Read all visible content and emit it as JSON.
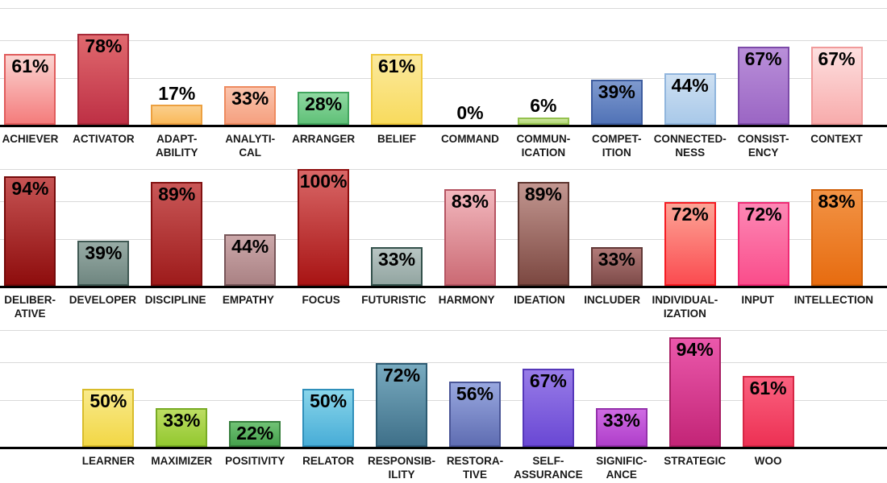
{
  "chart_data": {
    "type": "bar",
    "unit": "%",
    "ylim": [
      0,
      100
    ],
    "grid": "horizontal",
    "style": {
      "background": "#FFFFFF",
      "grid_color": "#D9D9D9",
      "axis_color": "#000000",
      "value_label_color": "#000000",
      "category_label_color": "#1A1A1A"
    },
    "rows": [
      {
        "offset": 0,
        "bars": [
          {
            "name": "ACHIEVER",
            "lines": [
              "ACHIEVER"
            ],
            "value": 61,
            "top": "#FBD4D1",
            "bottom": "#F47C7C",
            "border": "#E05C5C"
          },
          {
            "name": "ACTIVATOR",
            "lines": [
              "ACTIVATOR"
            ],
            "value": 78,
            "top": "#E0696E",
            "bottom": "#BE3045",
            "border": "#A62938"
          },
          {
            "name": "ADAPTABILITY",
            "lines": [
              "ADAPT-",
              "ABILITY"
            ],
            "value": 17,
            "top": "#FBCF8C",
            "bottom": "#F9BA5B",
            "border": "#ECA040"
          },
          {
            "name": "ANALYTICAL",
            "lines": [
              "ANALYTI-",
              "CAL"
            ],
            "value": 33,
            "top": "#FAC4AD",
            "bottom": "#F5A07F",
            "border": "#EE8B60"
          },
          {
            "name": "ARRANGER",
            "lines": [
              "ARRANGER"
            ],
            "value": 28,
            "top": "#8FD9A1",
            "bottom": "#60C078",
            "border": "#42A55E"
          },
          {
            "name": "BELIEF",
            "lines": [
              "BELIEF"
            ],
            "value": 61,
            "top": "#FBE99D",
            "bottom": "#F8DB5E",
            "border": "#EFC93E"
          },
          {
            "name": "COMMAND",
            "lines": [
              "COMMAND"
            ],
            "value": 0,
            "top": "#D9D9D9",
            "bottom": "#D9D9D9",
            "border": "#D9D9D9"
          },
          {
            "name": "COMMUNICATION",
            "lines": [
              "COMMUN-",
              "ICATION"
            ],
            "value": 6,
            "top": "#CCE49D",
            "bottom": "#B5D879",
            "border": "#95C24F"
          },
          {
            "name": "COMPETITION",
            "lines": [
              "COMPET-",
              "ITION"
            ],
            "value": 39,
            "top": "#7E99CE",
            "bottom": "#5173B7",
            "border": "#3D5C9E"
          },
          {
            "name": "CONNECTEDNESS",
            "lines": [
              "CONNECTED-",
              "NESS"
            ],
            "value": 44,
            "top": "#CEE0F2",
            "bottom": "#A9C9E9",
            "border": "#90B5DD"
          },
          {
            "name": "CONSISTENCY",
            "lines": [
              "CONSIST-",
              "ENCY"
            ],
            "value": 67,
            "top": "#B98FD9",
            "bottom": "#9B66C4",
            "border": "#7C4AA8"
          },
          {
            "name": "CONTEXT",
            "lines": [
              "CONTEXT"
            ],
            "value": 67,
            "top": "#FDDFDF",
            "bottom": "#F8ACAC",
            "border": "#F09A9A"
          }
        ]
      },
      {
        "offset": 0,
        "bars": [
          {
            "name": "DELIBERATIVE",
            "lines": [
              "DELIBER-",
              "ATIVE"
            ],
            "value": 94,
            "top": "#C65353",
            "bottom": "#8E0D0D",
            "border": "#740A0A"
          },
          {
            "name": "DEVELOPER",
            "lines": [
              "DEVELOPER"
            ],
            "value": 39,
            "top": "#97ABA5",
            "bottom": "#6F8680",
            "border": "#3E5852"
          },
          {
            "name": "DISCIPLINE",
            "lines": [
              "DISCIPLINE"
            ],
            "value": 89,
            "top": "#C95757",
            "bottom": "#9E1B1B",
            "border": "#811111"
          },
          {
            "name": "EMPATHY",
            "lines": [
              "EMPATHY"
            ],
            "value": 44,
            "top": "#CBA7A9",
            "bottom": "#AA8284",
            "border": "#775659"
          },
          {
            "name": "FOCUS",
            "lines": [
              "FOCUS"
            ],
            "value": 100,
            "top": "#D96767",
            "bottom": "#A81414",
            "border": "#8E0E0E"
          },
          {
            "name": "FUTURISTIC",
            "lines": [
              "FUTURISTIC"
            ],
            "value": 33,
            "top": "#B8C5C3",
            "bottom": "#92A5A1",
            "border": "#33514B"
          },
          {
            "name": "HARMONY",
            "lines": [
              "HARMONY"
            ],
            "value": 83,
            "top": "#F2B7BD",
            "bottom": "#CB6A74",
            "border": "#B55462"
          },
          {
            "name": "IDEATION",
            "lines": [
              "IDEATION"
            ],
            "value": 89,
            "top": "#C29690",
            "bottom": "#7C4841",
            "border": "#5C342E"
          },
          {
            "name": "INCLUDER",
            "lines": [
              "INCLUDER"
            ],
            "value": 33,
            "top": "#B17A78",
            "bottom": "#7E4B49",
            "border": "#613836"
          },
          {
            "name": "INDIVIDUALIZATION",
            "lines": [
              "INDIVIDUAL-",
              "IZATION"
            ],
            "value": 72,
            "top": "#FCA496",
            "bottom": "#FB4B50",
            "border": "#F51B22"
          },
          {
            "name": "INPUT",
            "lines": [
              "INPUT"
            ],
            "value": 72,
            "top": "#FC88B5",
            "bottom": "#FA4D8B",
            "border": "#EF2A74"
          },
          {
            "name": "INTELLECTION",
            "lines": [
              "INTELLECTION"
            ],
            "value": 83,
            "top": "#F29345",
            "bottom": "#E76C10",
            "border": "#CF5F09"
          }
        ]
      },
      {
        "offset": 1,
        "bars": [
          {
            "name": "LEARNER",
            "lines": [
              "LEARNER"
            ],
            "value": 50,
            "top": "#F9EA8B",
            "bottom": "#F2D746",
            "border": "#D8BC2B"
          },
          {
            "name": "MAXIMIZER",
            "lines": [
              "MAXIMIZER"
            ],
            "value": 33,
            "top": "#BCDD62",
            "bottom": "#93C830",
            "border": "#78AB24"
          },
          {
            "name": "POSITIVITY",
            "lines": [
              "POSITIVITY"
            ],
            "value": 22,
            "top": "#70C275",
            "bottom": "#46A04D",
            "border": "#377F3D"
          },
          {
            "name": "RELATOR",
            "lines": [
              "RELATOR"
            ],
            "value": 50,
            "top": "#88D5EA",
            "bottom": "#48ADD7",
            "border": "#2F8FBA"
          },
          {
            "name": "RESPONSIBILITY",
            "lines": [
              "RESPONSIB-",
              "ILITY"
            ],
            "value": 72,
            "top": "#78AABF",
            "bottom": "#3F7089",
            "border": "#2C5A71"
          },
          {
            "name": "RESTORATIVE",
            "lines": [
              "RESTORA-",
              "TIVE"
            ],
            "value": 56,
            "top": "#98A7DF",
            "bottom": "#5F6DB2",
            "border": "#4A5697"
          },
          {
            "name": "SELF-ASSURANCE",
            "lines": [
              "SELF-",
              "ASSURANCE"
            ],
            "value": 67,
            "top": "#987CE8",
            "bottom": "#6A48D4",
            "border": "#5537B9"
          },
          {
            "name": "SIGNIFICANCE",
            "lines": [
              "SIGNIFIC-",
              "ANCE"
            ],
            "value": 33,
            "top": "#CF6AE3",
            "bottom": "#AF3FCA",
            "border": "#9431AB"
          },
          {
            "name": "STRATEGIC",
            "lines": [
              "STRATEGIC"
            ],
            "value": 94,
            "top": "#EA58AB",
            "bottom": "#C32577",
            "border": "#A81F64"
          },
          {
            "name": "WOO",
            "lines": [
              "WOO"
            ],
            "value": 61,
            "top": "#FA617F",
            "bottom": "#ED3154",
            "border": "#D62745"
          }
        ]
      }
    ]
  }
}
